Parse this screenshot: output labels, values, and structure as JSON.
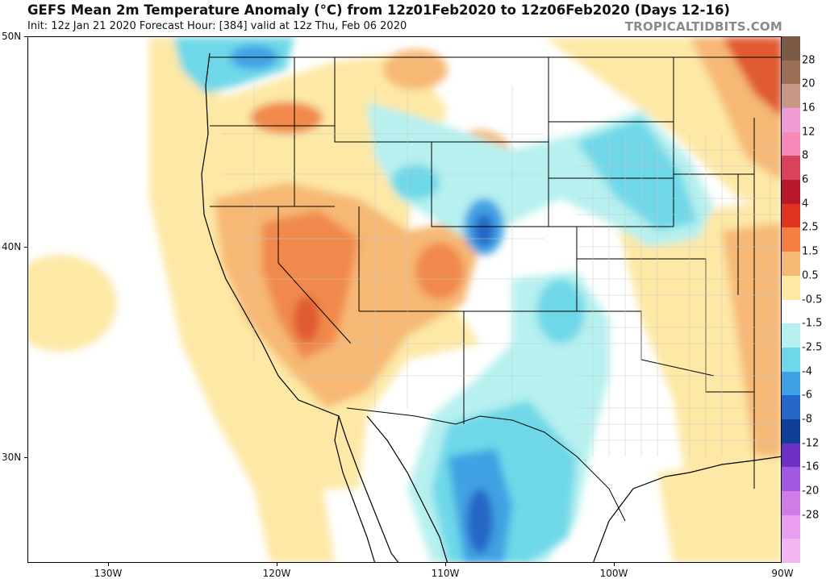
{
  "header": {
    "title": "GEFS Mean 2m Temperature Anomaly (°C) from 12z01Feb2020 to 12z06Feb2020 (Days 12-16)",
    "subtitle": "Init: 12z Jan 21 2020   Forecast Hour: [384]   valid at 12z Thu, Feb 06 2020",
    "brand": "TROPICALTIDBITS.COM"
  },
  "map": {
    "lat_labels": [
      "50N",
      "40N",
      "30N"
    ],
    "lon_labels": [
      "130W",
      "120W",
      "110W",
      "100W",
      "90W"
    ]
  },
  "colorbar": {
    "labels": [
      "28",
      "20",
      "16",
      "12",
      "8",
      "6",
      "4",
      "2.5",
      "1.5",
      "0.5",
      "-0.5",
      "-1.5",
      "-2.5",
      "-4",
      "-6",
      "-8",
      "-12",
      "-16",
      "-20",
      "-28"
    ],
    "colors": [
      "#7a5a44",
      "#9b6e56",
      "#c79787",
      "#ee9bd6",
      "#f58ab8",
      "#d8425a",
      "#b8182c",
      "#e0341f",
      "#f37f43",
      "#f6b875",
      "#fde8a5",
      "#ffffff",
      "#b6f0ef",
      "#6ed8e8",
      "#3fa1e3",
      "#2566c6",
      "#0f3f96",
      "#6e2fc4",
      "#a158e0",
      "#d07be8",
      "#e89ff0",
      "#f2b6f2"
    ]
  },
  "colors": {
    "warm_light": "#fde8a5",
    "warm_mid": "#f6b875",
    "warm_strong": "#f0894c",
    "warm_hot": "#e05a30",
    "cool_light": "#b6f0ef",
    "cool_mid": "#6ed8e8",
    "cool_strong": "#3fa1e3",
    "cool_deep": "#2566c6",
    "brand_gray": "#8a8a8a"
  }
}
